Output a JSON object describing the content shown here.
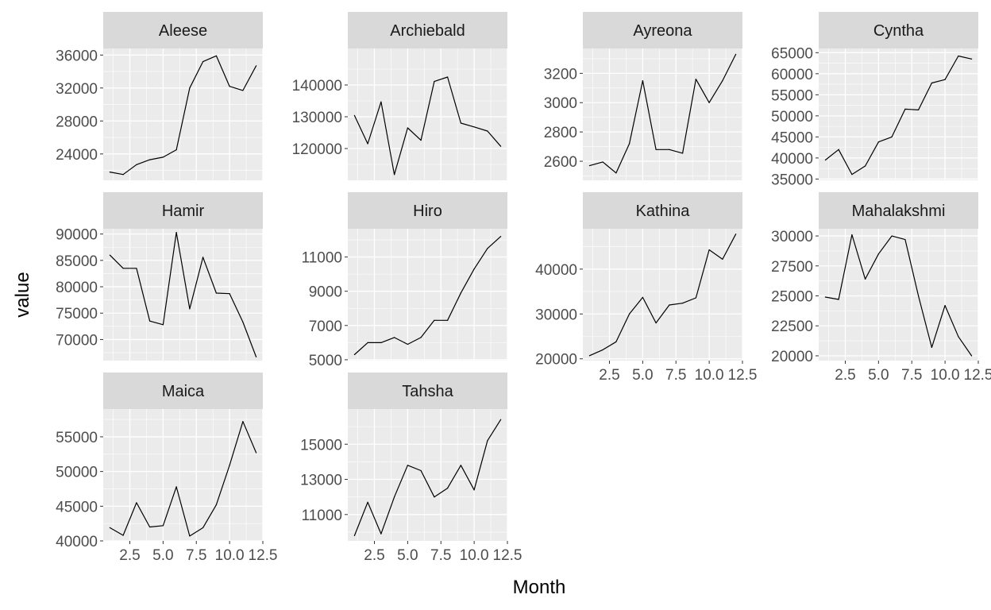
{
  "axes": {
    "xlabel": "Month",
    "ylabel": "value"
  },
  "style": {
    "panel_background": "#EBEBEB",
    "strip_background": "#D9D9D9",
    "grid_color": "#FFFFFF",
    "line_color": "#000000"
  },
  "chart_data": [
    {
      "type": "line",
      "title": "Aleese",
      "xlim": [
        0.5,
        12.5
      ],
      "ylim": [
        20800,
        36800
      ],
      "x": [
        1,
        2,
        3,
        4,
        5,
        6,
        7,
        8,
        9,
        10,
        11,
        12
      ],
      "values": [
        21800,
        21500,
        22700,
        23300,
        23600,
        24500,
        32000,
        35200,
        35900,
        32200,
        31700,
        34700
      ],
      "xticks": [
        2.5,
        5.0,
        7.5,
        10.0,
        12.5
      ],
      "xtick_labels": [
        "2.5",
        "5.0",
        "7.5",
        "10.0",
        "12.5"
      ],
      "yticks": [
        24000,
        28000,
        32000,
        36000
      ],
      "ytick_labels": [
        "24000",
        "28000",
        "32000",
        "36000"
      ],
      "show_x_ticks": false
    },
    {
      "type": "line",
      "title": "Archiebald",
      "xlim": [
        0.5,
        12.5
      ],
      "ylim": [
        110000,
        151500
      ],
      "x": [
        1,
        2,
        3,
        4,
        5,
        6,
        7,
        8,
        9,
        10,
        11,
        12
      ],
      "values": [
        130400,
        121500,
        134700,
        111800,
        126500,
        122600,
        141100,
        142500,
        128000,
        126800,
        125500,
        120700
      ],
      "xticks": [
        2.5,
        5.0,
        7.5,
        10.0,
        12.5
      ],
      "xtick_labels": [
        "2.5",
        "5.0",
        "7.5",
        "10.0",
        "12.5"
      ],
      "yticks": [
        120000,
        130000,
        140000
      ],
      "ytick_labels": [
        "120000",
        "130000",
        "140000"
      ],
      "show_x_ticks": false
    },
    {
      "type": "line",
      "title": "Ayreona",
      "xlim": [
        0.5,
        12.5
      ],
      "ylim": [
        2470,
        3370
      ],
      "x": [
        1,
        2,
        3,
        4,
        5,
        6,
        7,
        8,
        9,
        10,
        11,
        12
      ],
      "values": [
        2570,
        2595,
        2520,
        2720,
        3150,
        2680,
        2680,
        2655,
        3160,
        3000,
        3150,
        3330
      ],
      "xticks": [
        2.5,
        5.0,
        7.5,
        10.0,
        12.5
      ],
      "xtick_labels": [
        "2.5",
        "5.0",
        "7.5",
        "10.0",
        "12.5"
      ],
      "yticks": [
        2600,
        2800,
        3000,
        3200
      ],
      "ytick_labels": [
        "2600",
        "2800",
        "3000",
        "3200"
      ],
      "show_x_ticks": false
    },
    {
      "type": "line",
      "title": "Cyntha",
      "xlim": [
        0.5,
        12.5
      ],
      "ylim": [
        34700,
        66000
      ],
      "x": [
        1,
        2,
        3,
        4,
        5,
        6,
        7,
        8,
        9,
        10,
        11,
        12
      ],
      "values": [
        39500,
        42000,
        36100,
        38100,
        43800,
        45000,
        51600,
        51400,
        57800,
        58600,
        64200,
        63500
      ],
      "xticks": [
        2.5,
        5.0,
        7.5,
        10.0,
        12.5
      ],
      "xtick_labels": [
        "2.5",
        "5.0",
        "7.5",
        "10.0",
        "12.5"
      ],
      "yticks": [
        35000,
        40000,
        45000,
        50000,
        55000,
        60000,
        65000
      ],
      "ytick_labels": [
        "35000",
        "40000",
        "45000",
        "50000",
        "55000",
        "60000",
        "65000"
      ],
      "show_x_ticks": false
    },
    {
      "type": "line",
      "title": "Hamir",
      "xlim": [
        0.5,
        12.5
      ],
      "ylim": [
        66000,
        91000
      ],
      "x": [
        1,
        2,
        3,
        4,
        5,
        6,
        7,
        8,
        9,
        10,
        11,
        12
      ],
      "values": [
        86000,
        83500,
        83500,
        73500,
        72800,
        90300,
        75800,
        85600,
        78800,
        78700,
        73300,
        66700
      ],
      "xticks": [
        2.5,
        5.0,
        7.5,
        10.0,
        12.5
      ],
      "xtick_labels": [
        "2.5",
        "5.0",
        "7.5",
        "10.0",
        "12.5"
      ],
      "yticks": [
        70000,
        75000,
        80000,
        85000,
        90000
      ],
      "ytick_labels": [
        "70000",
        "75000",
        "80000",
        "85000",
        "90000"
      ],
      "show_x_ticks": false
    },
    {
      "type": "line",
      "title": "Hiro",
      "xlim": [
        0.5,
        12.5
      ],
      "ylim": [
        4950,
        12650
      ],
      "x": [
        1,
        2,
        3,
        4,
        5,
        6,
        7,
        8,
        9,
        10,
        11,
        12
      ],
      "values": [
        5300,
        6000,
        6000,
        6300,
        5900,
        6300,
        7300,
        7300,
        8900,
        10300,
        11500,
        12200
      ],
      "xticks": [
        2.5,
        5.0,
        7.5,
        10.0,
        12.5
      ],
      "xtick_labels": [
        "2.5",
        "5.0",
        "7.5",
        "10.0",
        "12.5"
      ],
      "yticks": [
        5000,
        7000,
        9000,
        11000
      ],
      "ytick_labels": [
        "5000",
        "7000",
        "9000",
        "11000"
      ],
      "show_x_ticks": false
    },
    {
      "type": "line",
      "title": "Kathina",
      "xlim": [
        0.5,
        12.5
      ],
      "ylim": [
        19600,
        49000
      ],
      "x": [
        1,
        2,
        3,
        4,
        5,
        6,
        7,
        8,
        9,
        10,
        11,
        12
      ],
      "values": [
        20700,
        22000,
        23800,
        30000,
        33700,
        28000,
        32000,
        32400,
        33600,
        44300,
        42200,
        47800
      ],
      "xticks": [
        2.5,
        5.0,
        7.5,
        10.0,
        12.5
      ],
      "xtick_labels": [
        "2.5",
        "5.0",
        "7.5",
        "10.0",
        "12.5"
      ],
      "yticks": [
        20000,
        30000,
        40000
      ],
      "ytick_labels": [
        "20000",
        "30000",
        "40000"
      ],
      "show_x_ticks": true
    },
    {
      "type": "line",
      "title": "Mahalakshmi",
      "xlim": [
        0.5,
        12.5
      ],
      "ylim": [
        19600,
        30600
      ],
      "x": [
        1,
        2,
        3,
        4,
        5,
        6,
        7,
        8,
        9,
        10,
        11,
        12
      ],
      "values": [
        24900,
        24700,
        30100,
        26400,
        28500,
        30000,
        29700,
        25000,
        20700,
        24200,
        21600,
        20000
      ],
      "xticks": [
        2.5,
        5.0,
        7.5,
        10.0,
        12.5
      ],
      "xtick_labels": [
        "2.5",
        "5.0",
        "7.5",
        "10.0",
        "12.5"
      ],
      "yticks": [
        20000,
        22500,
        25000,
        27500,
        30000
      ],
      "ytick_labels": [
        "20000",
        "22500",
        "25000",
        "27500",
        "30000"
      ],
      "show_x_ticks": true
    },
    {
      "type": "line",
      "title": "Maica",
      "xlim": [
        0.5,
        12.5
      ],
      "ylim": [
        40000,
        59000
      ],
      "x": [
        1,
        2,
        3,
        4,
        5,
        6,
        7,
        8,
        9,
        10,
        11,
        12
      ],
      "values": [
        41900,
        40800,
        45500,
        42000,
        42200,
        47800,
        40700,
        41900,
        45200,
        50900,
        57200,
        52700
      ],
      "xticks": [
        2.5,
        5.0,
        7.5,
        10.0,
        12.5
      ],
      "xtick_labels": [
        "2.5",
        "5.0",
        "7.5",
        "10.0",
        "12.5"
      ],
      "yticks": [
        40000,
        45000,
        50000,
        55000
      ],
      "ytick_labels": [
        "40000",
        "45000",
        "50000",
        "55000"
      ],
      "show_x_ticks": true
    },
    {
      "type": "line",
      "title": "Tahsha",
      "xlim": [
        0.5,
        12.5
      ],
      "ylim": [
        9500,
        17000
      ],
      "x": [
        1,
        2,
        3,
        4,
        5,
        6,
        7,
        8,
        9,
        10,
        11,
        12
      ],
      "values": [
        9800,
        11700,
        9900,
        12000,
        13800,
        13500,
        12000,
        12500,
        13800,
        12400,
        15200,
        16400
      ],
      "xticks": [
        2.5,
        5.0,
        7.5,
        10.0,
        12.5
      ],
      "xtick_labels": [
        "2.5",
        "5.0",
        "7.5",
        "10.0",
        "12.5"
      ],
      "yticks": [
        11000,
        13000,
        15000
      ],
      "ytick_labels": [
        "11000",
        "13000",
        "15000"
      ],
      "show_x_ticks": true
    }
  ]
}
